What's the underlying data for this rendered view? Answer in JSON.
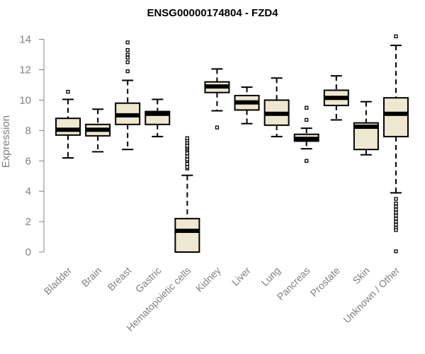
{
  "chart_data": {
    "type": "boxplot",
    "title": "ENSG00000174804 - FZD4",
    "ylabel": "Expression",
    "xlabel": "",
    "ylim": [
      0,
      14.4
    ],
    "yticks": [
      0,
      2,
      4,
      6,
      8,
      10,
      12,
      14
    ],
    "grid": false,
    "colors": {
      "box_fill": "#efe8d0",
      "stroke": "#000000",
      "axis": "#808080"
    },
    "categories": [
      "Bladder",
      "Brain",
      "Breast",
      "Gastric",
      "Hematopoietic cells",
      "Kidney",
      "Liver",
      "Lung",
      "Pancreas",
      "Prostate",
      "Skin",
      "Unknown / Other"
    ],
    "boxes": [
      {
        "name": "Bladder",
        "whisker_low": 6.2,
        "q1": 7.7,
        "median": 8.05,
        "q3": 8.8,
        "whisker_high": 10.05,
        "outliers": [
          10.55
        ]
      },
      {
        "name": "Brain",
        "whisker_low": 6.6,
        "q1": 7.65,
        "median": 8.05,
        "q3": 8.4,
        "whisker_high": 9.4,
        "outliers": []
      },
      {
        "name": "Breast",
        "whisker_low": 6.75,
        "q1": 8.4,
        "median": 9.0,
        "q3": 9.8,
        "whisker_high": 11.3,
        "outliers": [
          11.9,
          12.5,
          12.8,
          13.0,
          13.3,
          13.8
        ]
      },
      {
        "name": "Gastric",
        "whisker_low": 7.6,
        "q1": 8.4,
        "median": 9.1,
        "q3": 9.25,
        "whisker_high": 10.05,
        "outliers": []
      },
      {
        "name": "Hematopoietic cells",
        "whisker_low": 0.0,
        "q1": 0.0,
        "median": 1.4,
        "q3": 2.2,
        "whisker_high": 5.05,
        "outliers": [
          5.5,
          5.6,
          5.8,
          6.0,
          6.1,
          6.3,
          6.5,
          6.7,
          6.8,
          6.9,
          7.0,
          7.2,
          7.35,
          7.5
        ]
      },
      {
        "name": "Kidney",
        "whisker_low": 9.3,
        "q1": 10.5,
        "median": 10.9,
        "q3": 11.2,
        "whisker_high": 12.05,
        "outliers": [
          8.2
        ]
      },
      {
        "name": "Liver",
        "whisker_low": 8.45,
        "q1": 9.35,
        "median": 9.85,
        "q3": 10.3,
        "whisker_high": 10.85,
        "outliers": []
      },
      {
        "name": "Lung",
        "whisker_low": 7.6,
        "q1": 8.35,
        "median": 9.1,
        "q3": 10.0,
        "whisker_high": 11.45,
        "outliers": []
      },
      {
        "name": "Pancreas",
        "whisker_low": 6.8,
        "q1": 7.3,
        "median": 7.45,
        "q3": 7.75,
        "whisker_high": 8.15,
        "outliers": [
          8.7,
          9.5,
          6.0
        ]
      },
      {
        "name": "Prostate",
        "whisker_low": 8.7,
        "q1": 9.65,
        "median": 10.15,
        "q3": 10.65,
        "whisker_high": 11.6,
        "outliers": []
      },
      {
        "name": "Skin",
        "whisker_low": 6.4,
        "q1": 6.75,
        "median": 8.25,
        "q3": 8.5,
        "whisker_high": 9.9,
        "outliers": []
      },
      {
        "name": "Unknown / Other",
        "whisker_low": 3.9,
        "q1": 7.6,
        "median": 9.1,
        "q3": 10.15,
        "whisker_high": 13.6,
        "outliers": [
          14.2,
          3.5,
          3.2,
          3.0,
          2.8,
          2.6,
          2.4,
          2.2,
          2.0,
          1.8,
          1.6,
          1.45,
          0.05
        ]
      }
    ]
  }
}
